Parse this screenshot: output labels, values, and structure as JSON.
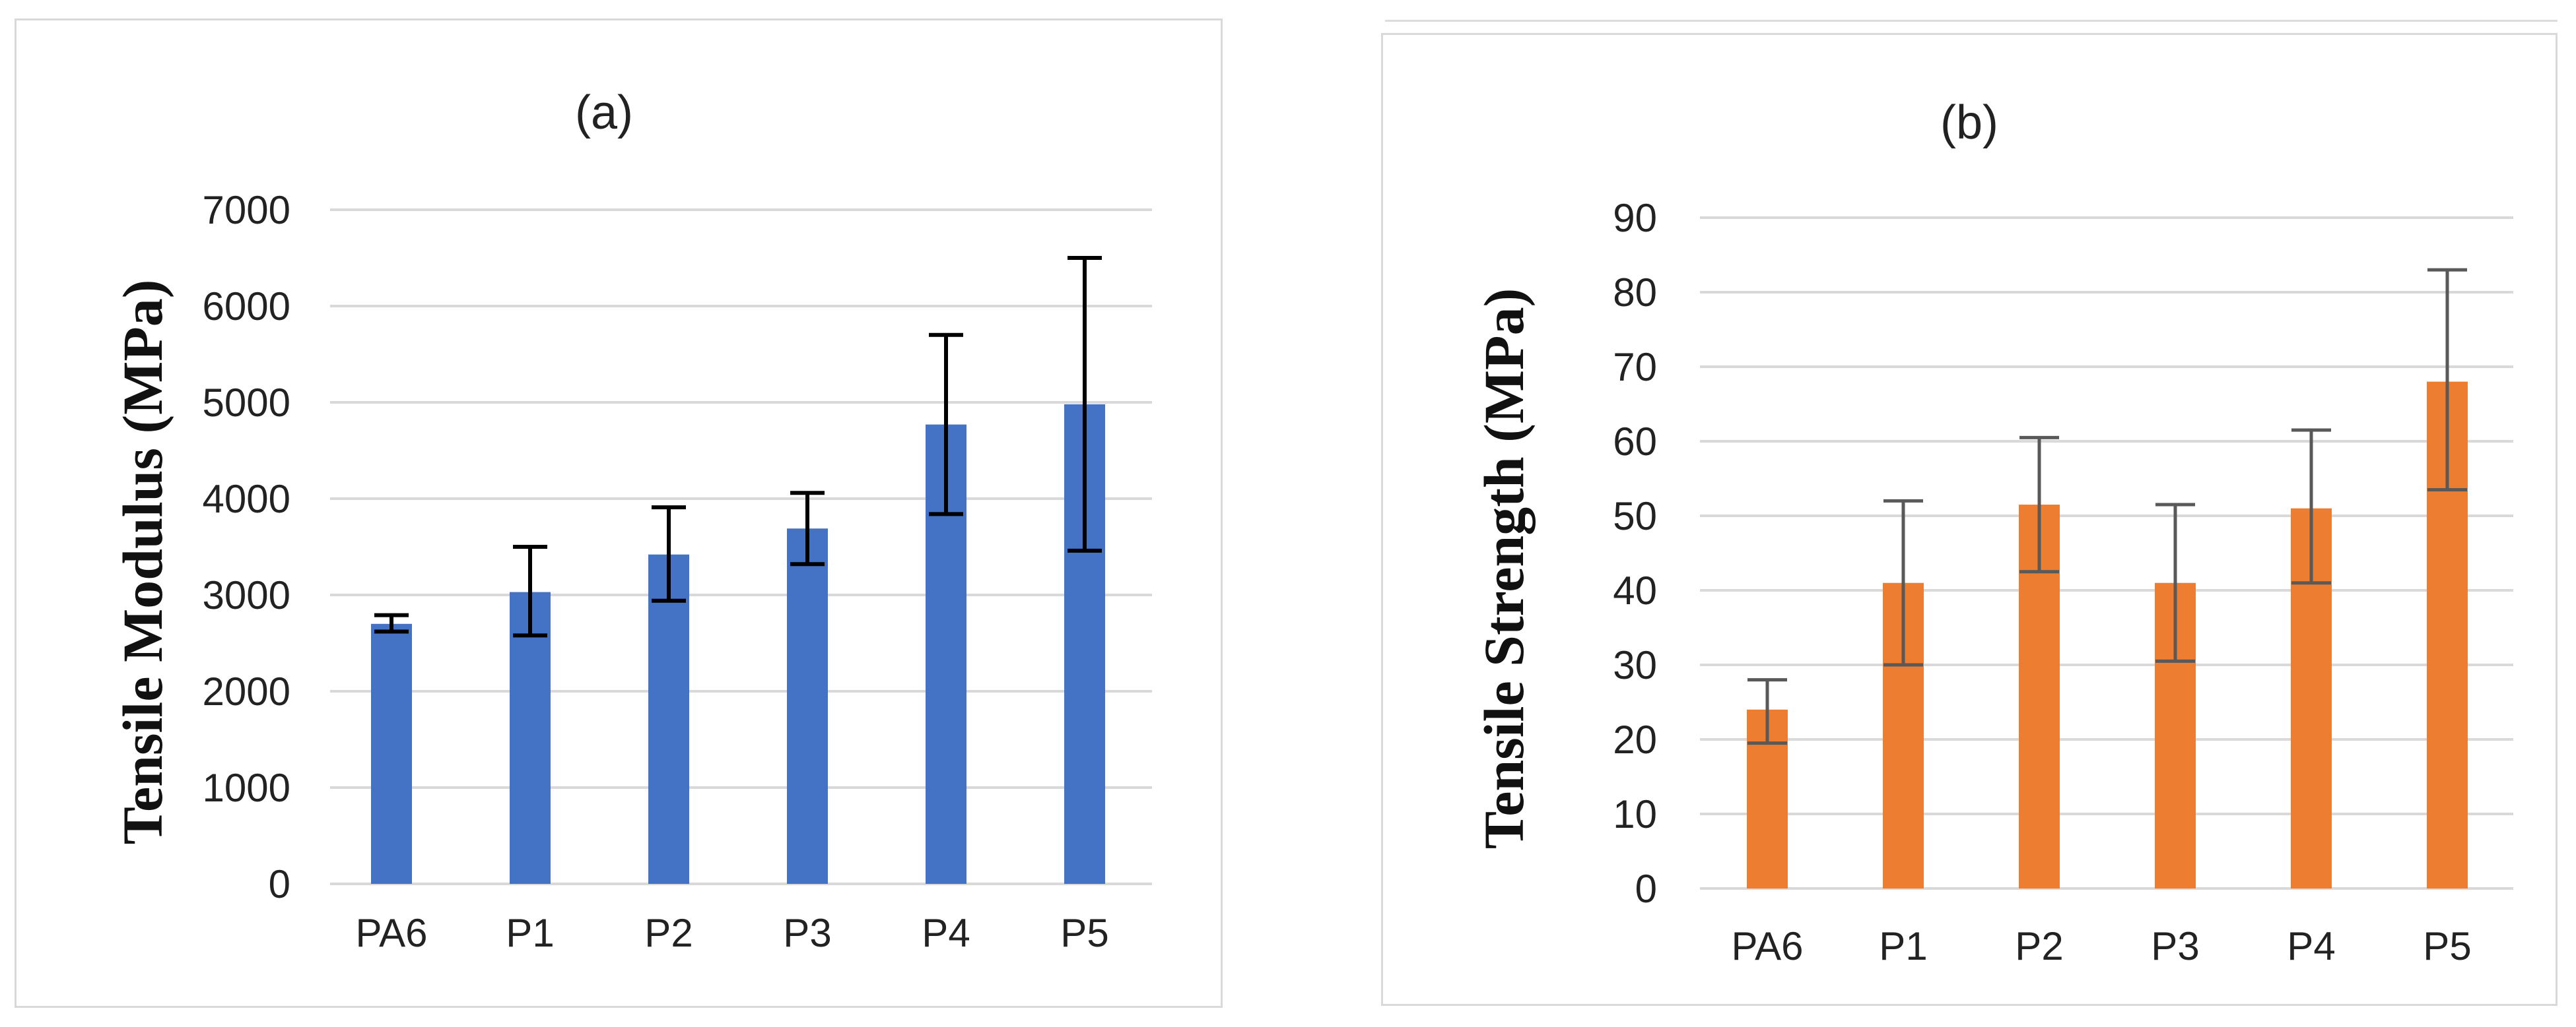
{
  "chart_data": [
    {
      "type": "bar",
      "title": "(a)",
      "xlabel": "",
      "ylabel": "Tensile Modulus (MPa)",
      "categories": [
        "PA6",
        "P1",
        "P2",
        "P3",
        "P4",
        "P5"
      ],
      "values": [
        2700,
        3030,
        3420,
        3690,
        4770,
        4980
      ],
      "error_high": [
        2790,
        3500,
        3910,
        4060,
        5700,
        6500
      ],
      "error_low": [
        2620,
        2580,
        2940,
        3320,
        3840,
        3460
      ],
      "ylim": [
        0,
        7000
      ],
      "yticks": [
        "0",
        "1000",
        "2000",
        "3000",
        "4000",
        "5000",
        "6000",
        "7000"
      ],
      "grid": true,
      "color": "#4472c4",
      "error_color": "#000000"
    },
    {
      "type": "bar",
      "title": "(b)",
      "xlabel": "",
      "ylabel": "Tensile Strength (MPa)",
      "categories": [
        "PA6",
        "P1",
        "P2",
        "P3",
        "P4",
        "P5"
      ],
      "values": [
        24,
        41,
        51.5,
        41,
        51,
        68
      ],
      "error_high": [
        28,
        52,
        60.5,
        51.5,
        61.5,
        83
      ],
      "error_low": [
        19.5,
        30,
        42.5,
        30.5,
        41,
        53.5
      ],
      "ylim": [
        0,
        90
      ],
      "yticks": [
        "0",
        "10",
        "20",
        "30",
        "40",
        "50",
        "60",
        "70",
        "80",
        "90"
      ],
      "grid": true,
      "color": "#ed7d31",
      "error_color": "#595959"
    }
  ]
}
